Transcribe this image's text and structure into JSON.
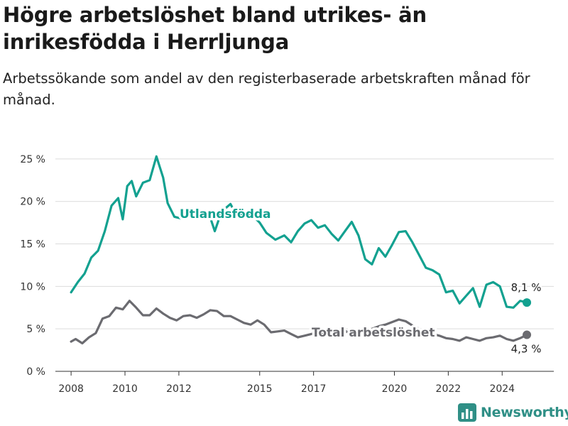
{
  "header": {
    "title": "Högre arbetslöshet bland utrikes- än inrikesfödda i Herrljunga",
    "subtitle": "Arbetssökande som andel av den registerbaserade arbetskraften månad för månad."
  },
  "brand": {
    "name": "Newsworthy"
  },
  "colors": {
    "foreign": "#13a190",
    "total": "#6b6b70",
    "grid": "#dcdcdc",
    "axis": "#333333"
  },
  "chart_data": {
    "type": "line",
    "title": "Högre arbetslöshet bland utrikes- än inrikesfödda i Herrljunga",
    "subtitle": "Arbetssökande som andel av den registerbaserade arbetskraften månad för månad.",
    "xlim": [
      "2007-06",
      "2025-12"
    ],
    "ylim": [
      0,
      27
    ],
    "yticks": [
      0,
      5,
      10,
      15,
      20,
      25
    ],
    "ytick_labels": [
      "0 %",
      "5 %",
      "10 %",
      "15 %",
      "20 %",
      "25 %"
    ],
    "xticks": [
      "2008",
      "2010",
      "2012",
      "2015",
      "2017",
      "2020",
      "2022",
      "2024"
    ],
    "grid": "horizontal",
    "series": [
      {
        "name": "Utlandsfödda",
        "color": "#13a190",
        "end_label": "8,1 %",
        "points": [
          [
            "2008-01",
            9.3
          ],
          [
            "2008-04",
            10.5
          ],
          [
            "2008-07",
            11.5
          ],
          [
            "2008-10",
            13.4
          ],
          [
            "2009-01",
            14.2
          ],
          [
            "2009-04",
            16.5
          ],
          [
            "2009-07",
            19.5
          ],
          [
            "2009-10",
            20.4
          ],
          [
            "2009-12",
            17.9
          ],
          [
            "2010-02",
            21.8
          ],
          [
            "2010-04",
            22.4
          ],
          [
            "2010-06",
            20.6
          ],
          [
            "2010-09",
            22.2
          ],
          [
            "2010-12",
            22.5
          ],
          [
            "2011-03",
            25.3
          ],
          [
            "2011-06",
            22.8
          ],
          [
            "2011-08",
            19.8
          ],
          [
            "2011-11",
            18.2
          ],
          [
            "2012-02",
            18.0
          ],
          [
            "2012-06",
            18.5
          ],
          [
            "2012-10",
            18.4
          ],
          [
            "2013-02",
            18.9
          ],
          [
            "2013-05",
            16.5
          ],
          [
            "2013-08",
            18.8
          ],
          [
            "2013-12",
            19.7
          ],
          [
            "2014-03",
            18.2
          ],
          [
            "2014-06",
            18.8
          ],
          [
            "2014-10",
            18.3
          ],
          [
            "2015-01",
            17.5
          ],
          [
            "2015-04",
            16.3
          ],
          [
            "2015-08",
            15.5
          ],
          [
            "2015-12",
            16.0
          ],
          [
            "2016-03",
            15.2
          ],
          [
            "2016-06",
            16.5
          ],
          [
            "2016-09",
            17.4
          ],
          [
            "2016-12",
            17.8
          ],
          [
            "2017-03",
            16.9
          ],
          [
            "2017-06",
            17.2
          ],
          [
            "2017-09",
            16.2
          ],
          [
            "2017-12",
            15.4
          ],
          [
            "2018-03",
            16.5
          ],
          [
            "2018-06",
            17.6
          ],
          [
            "2018-09",
            16.0
          ],
          [
            "2018-12",
            13.2
          ],
          [
            "2019-03",
            12.6
          ],
          [
            "2019-06",
            14.5
          ],
          [
            "2019-09",
            13.5
          ],
          [
            "2019-12",
            14.9
          ],
          [
            "2020-03",
            16.4
          ],
          [
            "2020-06",
            16.5
          ],
          [
            "2020-09",
            15.2
          ],
          [
            "2020-12",
            13.7
          ],
          [
            "2021-03",
            12.2
          ],
          [
            "2021-06",
            11.9
          ],
          [
            "2021-09",
            11.4
          ],
          [
            "2021-12",
            9.3
          ],
          [
            "2022-03",
            9.5
          ],
          [
            "2022-06",
            8.0
          ],
          [
            "2022-09",
            8.9
          ],
          [
            "2022-12",
            9.8
          ],
          [
            "2023-03",
            7.6
          ],
          [
            "2023-06",
            10.2
          ],
          [
            "2023-09",
            10.5
          ],
          [
            "2023-12",
            10.0
          ],
          [
            "2024-03",
            7.6
          ],
          [
            "2024-06",
            7.5
          ],
          [
            "2024-09",
            8.3
          ],
          [
            "2024-12",
            8.1
          ]
        ]
      },
      {
        "name": "Total arbetslöshet",
        "color": "#6b6b70",
        "end_label": "4,3 %",
        "points": [
          [
            "2008-01",
            3.5
          ],
          [
            "2008-03",
            3.8
          ],
          [
            "2008-06",
            3.3
          ],
          [
            "2008-09",
            4.0
          ],
          [
            "2008-12",
            4.5
          ],
          [
            "2009-03",
            6.2
          ],
          [
            "2009-06",
            6.5
          ],
          [
            "2009-09",
            7.5
          ],
          [
            "2009-12",
            7.3
          ],
          [
            "2010-03",
            8.3
          ],
          [
            "2010-06",
            7.5
          ],
          [
            "2010-09",
            6.6
          ],
          [
            "2010-12",
            6.6
          ],
          [
            "2011-03",
            7.4
          ],
          [
            "2011-06",
            6.8
          ],
          [
            "2011-09",
            6.3
          ],
          [
            "2011-12",
            6.0
          ],
          [
            "2012-03",
            6.5
          ],
          [
            "2012-06",
            6.6
          ],
          [
            "2012-09",
            6.3
          ],
          [
            "2012-12",
            6.7
          ],
          [
            "2013-03",
            7.2
          ],
          [
            "2013-06",
            7.1
          ],
          [
            "2013-09",
            6.5
          ],
          [
            "2013-12",
            6.5
          ],
          [
            "2014-03",
            6.1
          ],
          [
            "2014-06",
            5.7
          ],
          [
            "2014-09",
            5.5
          ],
          [
            "2014-12",
            6.0
          ],
          [
            "2015-03",
            5.5
          ],
          [
            "2015-06",
            4.6
          ],
          [
            "2015-09",
            4.7
          ],
          [
            "2015-12",
            4.8
          ],
          [
            "2016-03",
            4.4
          ],
          [
            "2016-06",
            4.0
          ],
          [
            "2016-09",
            4.2
          ],
          [
            "2016-12",
            4.4
          ],
          [
            "2017-03",
            4.6
          ],
          [
            "2017-06",
            4.2
          ],
          [
            "2017-09",
            4.0
          ],
          [
            "2017-12",
            4.6
          ],
          [
            "2018-03",
            4.8
          ],
          [
            "2018-06",
            4.3
          ],
          [
            "2018-09",
            4.5
          ],
          [
            "2018-12",
            4.9
          ],
          [
            "2019-03",
            5.0
          ],
          [
            "2019-06",
            5.3
          ],
          [
            "2019-09",
            5.5
          ],
          [
            "2019-12",
            5.8
          ],
          [
            "2020-03",
            6.1
          ],
          [
            "2020-06",
            5.9
          ],
          [
            "2020-09",
            5.4
          ],
          [
            "2020-12",
            5.0
          ],
          [
            "2021-03",
            4.7
          ],
          [
            "2021-06",
            4.4
          ],
          [
            "2021-09",
            4.2
          ],
          [
            "2021-12",
            3.9
          ],
          [
            "2022-03",
            3.8
          ],
          [
            "2022-06",
            3.6
          ],
          [
            "2022-09",
            4.0
          ],
          [
            "2022-12",
            3.8
          ],
          [
            "2023-03",
            3.6
          ],
          [
            "2023-06",
            3.9
          ],
          [
            "2023-09",
            4.0
          ],
          [
            "2023-12",
            4.2
          ],
          [
            "2024-03",
            3.8
          ],
          [
            "2024-06",
            3.6
          ],
          [
            "2024-09",
            3.9
          ],
          [
            "2024-12",
            4.3
          ]
        ]
      }
    ]
  }
}
